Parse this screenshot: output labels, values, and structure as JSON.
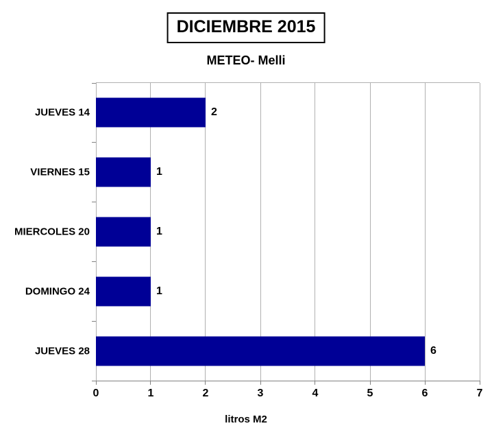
{
  "chart_data": {
    "type": "bar",
    "orientation": "horizontal",
    "title": "DICIEMBRE 2015",
    "subtitle": "METEO- Melli",
    "xlabel": "litros M2",
    "ylabel": "",
    "categories": [
      "JUEVES 14",
      "VIERNES 15",
      "MIERCOLES 20",
      "DOMINGO 24",
      "JUEVES 28"
    ],
    "values": [
      2,
      1,
      1,
      1,
      6
    ],
    "value_labels": [
      "2",
      "1",
      "1",
      "1",
      "6"
    ],
    "xlim": [
      0,
      7
    ],
    "xticks": [
      0,
      1,
      2,
      3,
      4,
      5,
      6,
      7
    ],
    "grid": "vertical",
    "legend": "none",
    "colors": {
      "bar": "#000096",
      "gridline": "#b0b0b0",
      "axis": "#808080",
      "text": "#000000",
      "background": "#ffffff",
      "title_box_border": "#000000"
    }
  }
}
